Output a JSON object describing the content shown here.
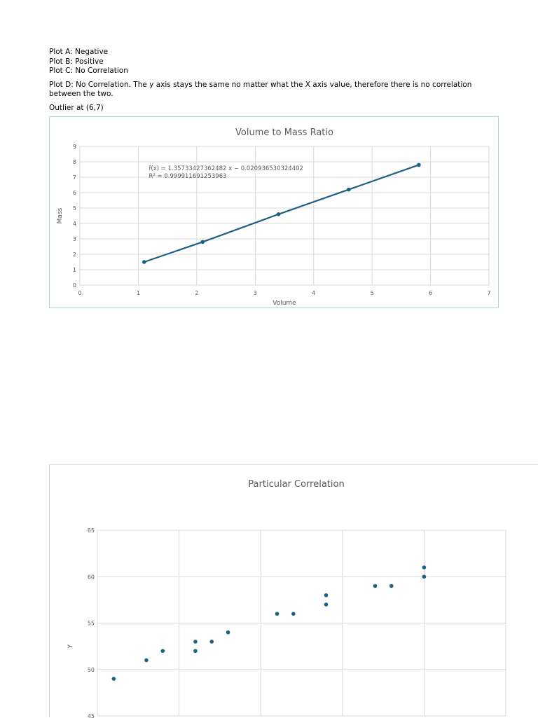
{
  "notes": {
    "line1": "Plot A: Negative",
    "line2": "Plot B: Positive",
    "line3": "Plot C: No Correlation",
    "line4": "Plot D: No Correlation. The y axis stays the same no matter what the X axis value, therefore there is no correlation between the two.",
    "line5": "Outlier at (6,7)"
  },
  "colors": {
    "series": "#1d6284",
    "grid": "#d9d9d9",
    "axis_text": "#595959",
    "frame": "#b8d4dc"
  },
  "chart_data": [
    {
      "type": "line",
      "title": "Volume to Mass Ratio",
      "xlabel": "Volume",
      "ylabel": "Mass",
      "xlim": [
        0,
        7
      ],
      "ylim": [
        0,
        9
      ],
      "xticks": [
        "0",
        "1",
        "2",
        "3",
        "4",
        "5",
        "6",
        "7"
      ],
      "yticks": [
        "0",
        "1",
        "2",
        "3",
        "4",
        "5",
        "6",
        "7",
        "8",
        "9"
      ],
      "grid": true,
      "legend": "none",
      "annotation": [
        "f(x) = 1.35733427362482 x − 0.020936530324402",
        "R² = 0.999911691253963"
      ],
      "series": [
        {
          "x": [
            1.1,
            2.1,
            3.4,
            4.6,
            5.8
          ],
          "y": [
            1.5,
            2.8,
            4.6,
            6.2,
            7.8
          ]
        }
      ]
    },
    {
      "type": "scatter",
      "title": "Particular Correlation",
      "xlabel": "",
      "ylabel": "Y",
      "ylim": [
        45,
        65
      ],
      "yticks": [
        "45",
        "50",
        "55",
        "60",
        "65"
      ],
      "grid": true,
      "legend": "none",
      "series": [
        {
          "x": [
            1,
            3,
            4,
            6,
            6,
            7,
            8,
            11,
            12,
            14,
            14,
            17,
            18,
            20,
            20
          ],
          "y": [
            49,
            51,
            52,
            53,
            52,
            53,
            54,
            56,
            56,
            58,
            57,
            59,
            59,
            61,
            60
          ]
        }
      ]
    }
  ]
}
